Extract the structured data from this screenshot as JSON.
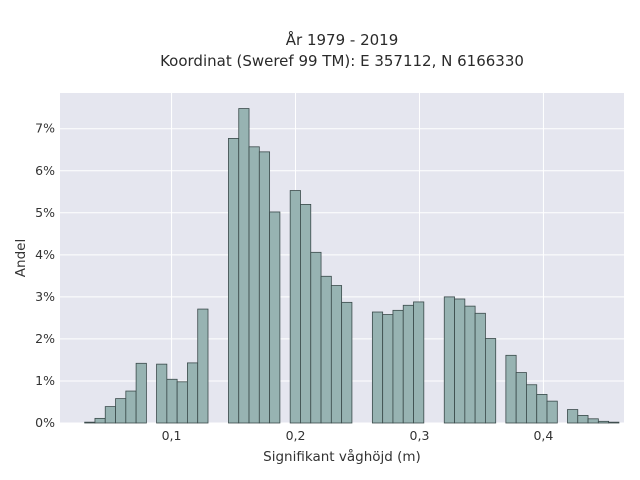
{
  "chart_data": {
    "type": "bar",
    "title": [
      "År 1979 - 2019",
      "Koordinat (Sweref 99 TM): E 357112, N 6166330"
    ],
    "xlabel": "Signifikant våghöjd (m)",
    "ylabel": "Andel",
    "xlim": [
      0.01,
      0.465
    ],
    "ylim": [
      0,
      0.0785
    ],
    "x_ticks": [
      0.1,
      0.2,
      0.3,
      0.4
    ],
    "x_tick_labels": [
      "0,1",
      "0,2",
      "0,3",
      "0,4"
    ],
    "y_ticks": [
      0,
      0.01,
      0.02,
      0.03,
      0.04,
      0.05,
      0.06,
      0.07
    ],
    "y_tick_labels": [
      "0%",
      "1%",
      "2%",
      "3%",
      "4%",
      "5%",
      "6%",
      "7%"
    ],
    "bin_width": 0.0083,
    "bin_starts": [
      0.0299,
      0.0382,
      0.0465,
      0.0548,
      0.0631,
      0.0714,
      0.0879,
      0.0962,
      0.1045,
      0.1128,
      0.1211,
      0.1459,
      0.1542,
      0.1625,
      0.1708,
      0.1791,
      0.1874,
      0.1957,
      0.204,
      0.2123,
      0.2206,
      0.2289,
      0.2372,
      0.2455,
      0.262,
      0.2703,
      0.2786,
      0.2869,
      0.2952,
      0.3035,
      0.32,
      0.3283,
      0.3366,
      0.3449,
      0.3532,
      0.3697,
      0.378,
      0.3863,
      0.3946,
      0.4029,
      0.4194,
      0.4277,
      0.436,
      0.4443,
      0.4526
    ],
    "values": [
      0.0002,
      0.0011,
      0.0039,
      0.0058,
      0.0076,
      0.0142,
      0.014,
      0.0104,
      0.0098,
      0.0143,
      0.0271,
      0.0677,
      0.0748,
      0.0657,
      0.0645,
      0.0502,
      0.0,
      0.0553,
      0.052,
      0.0406,
      0.0349,
      0.0327,
      0.0287,
      0.0,
      0.0264,
      0.0258,
      0.0268,
      0.028,
      0.0288,
      0.0,
      0.03,
      0.0295,
      0.0278,
      0.0261,
      0.0201,
      0.0161,
      0.012,
      0.0091,
      0.0068,
      0.0052,
      0.0032,
      0.0018,
      0.001,
      0.0004,
      0.0002
    ],
    "grid": true,
    "colors": {
      "bar_fill": "#97b3b2",
      "bar_edge": "#3a4a4a",
      "plot_bg": "#e5e6ef",
      "grid": "#ffffff"
    }
  }
}
